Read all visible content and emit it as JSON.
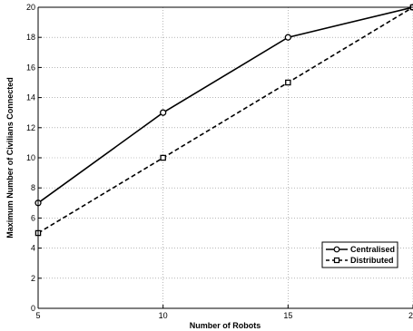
{
  "chart_data": {
    "type": "line",
    "title": "",
    "xlabel": "Number of Robots",
    "ylabel": "Maximum Number of Civilians Connected",
    "xlim": [
      5,
      20
    ],
    "ylim": [
      0,
      20
    ],
    "x_ticks": [
      5,
      10,
      15,
      20
    ],
    "y_ticks": [
      0,
      2,
      4,
      6,
      8,
      10,
      12,
      14,
      16,
      18,
      20
    ],
    "grid": true,
    "legend_position": "lower-right",
    "x": [
      5,
      10,
      15,
      20
    ],
    "series": [
      {
        "name": "Centralised",
        "values": [
          7,
          13,
          18,
          20
        ],
        "line_style": "solid",
        "marker": "circle",
        "color": "#000000"
      },
      {
        "name": "Distributed",
        "values": [
          5,
          10,
          15,
          20
        ],
        "line_style": "dashed",
        "marker": "square",
        "color": "#000000"
      }
    ]
  }
}
